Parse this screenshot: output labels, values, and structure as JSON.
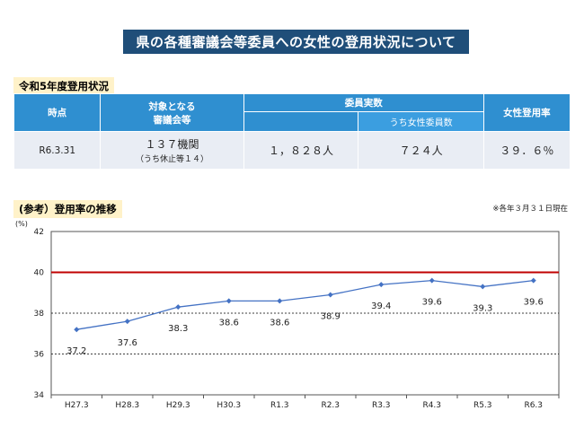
{
  "banner": {
    "title": "県の各種審議会等委員への女性の登用状況について"
  },
  "table_section": {
    "label": "令和5年度登用状況"
  },
  "table": {
    "headers": {
      "time": "時点",
      "target_line1": "対象となる",
      "target_line2": "審議会等",
      "members": "委員実数",
      "women_members": "うち女性委員数",
      "rate": "女性登用率"
    },
    "row": {
      "time": "R6.3.31",
      "target_main": "１３７機関",
      "target_sub": "（うち休止等１４）",
      "members": "１，８２８人",
      "women": "７２４人",
      "rate": "３９．６％"
    }
  },
  "chart_section": {
    "label": "(参考）登用率の推移",
    "note": "※各年３月３１日現在"
  },
  "chart_data": {
    "type": "line",
    "categories": [
      "H27.3",
      "H28.3",
      "H29.3",
      "H30.3",
      "R1.3",
      "R2.3",
      "R3.3",
      "R4.3",
      "R5.3",
      "R6.3"
    ],
    "values": [
      37.2,
      37.6,
      38.3,
      38.6,
      38.6,
      38.9,
      39.4,
      39.6,
      39.3,
      39.6
    ],
    "data_labels": [
      "37.2",
      "37.6",
      "38.3",
      "38.6",
      "38.6",
      "38.9",
      "39.4",
      "39.6",
      "39.3",
      "39.6"
    ],
    "ylim": [
      34,
      42
    ],
    "yticks": [
      "34",
      "36",
      "38",
      "40",
      "42"
    ],
    "ylabel": "(%)",
    "reference_line": 40,
    "colors": {
      "line": "#4472c4",
      "reference": "#c00000",
      "grid": "#000000"
    }
  }
}
